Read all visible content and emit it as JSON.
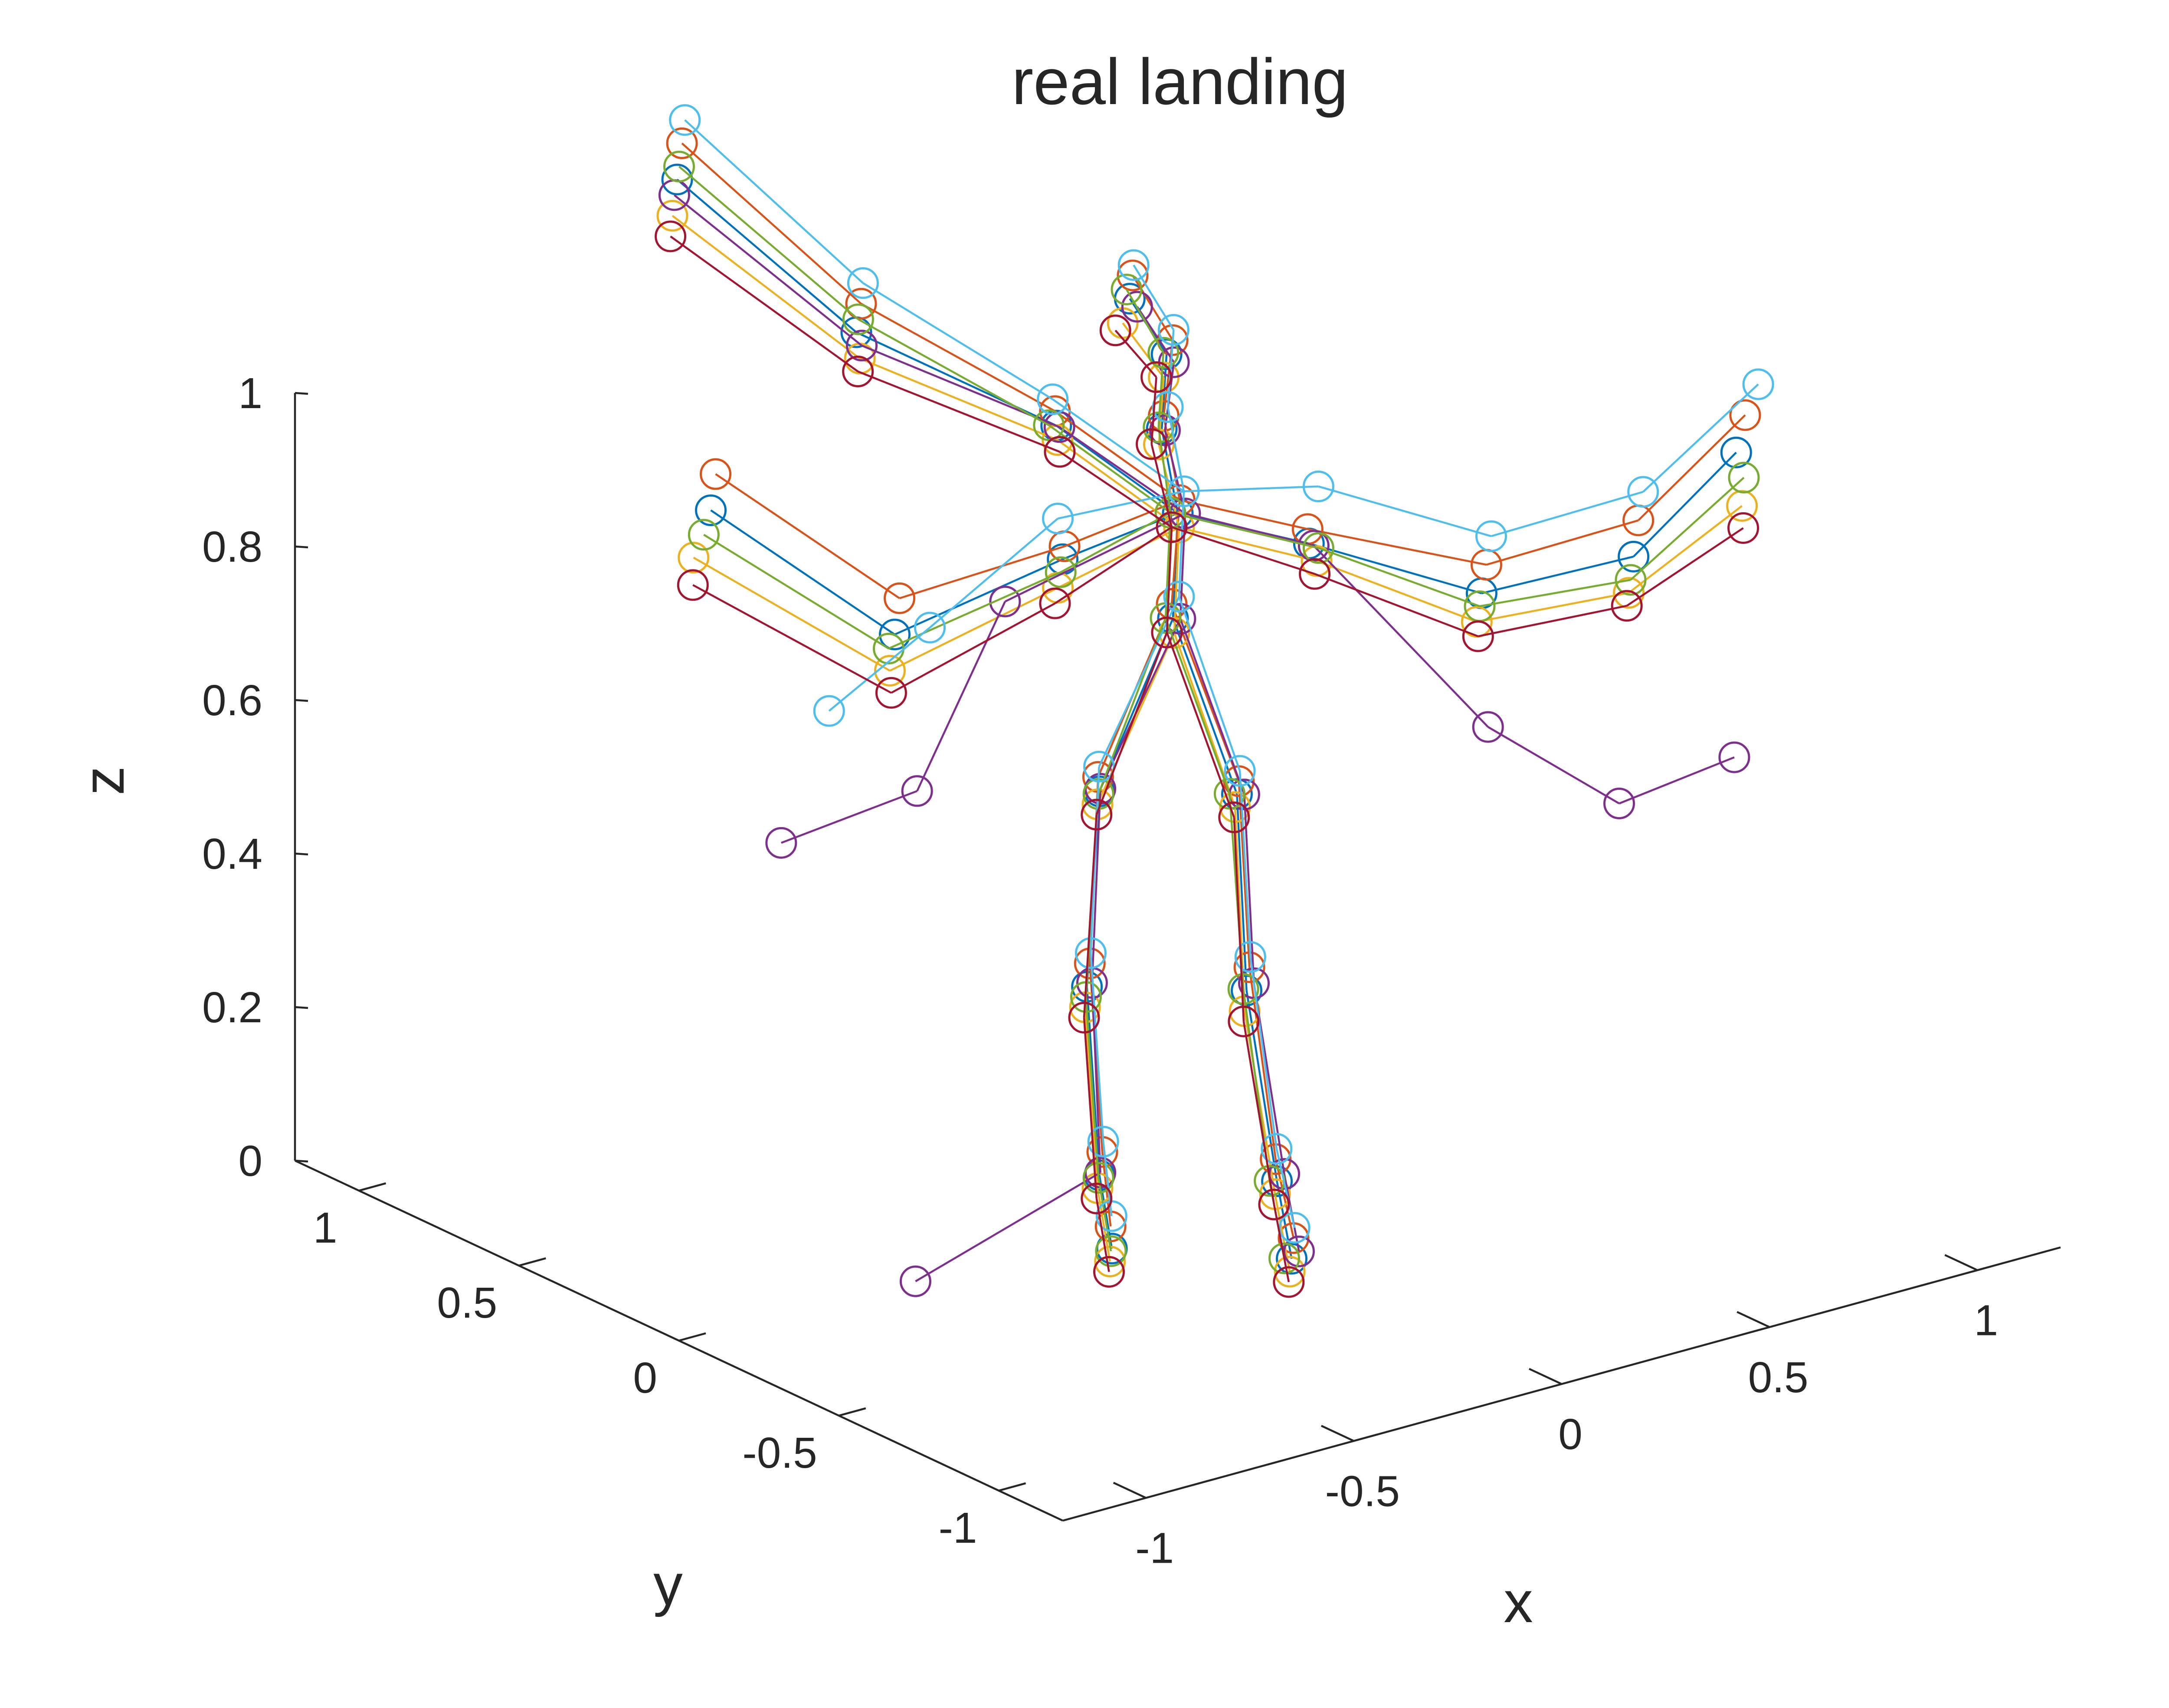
{
  "chart_data": {
    "type": "scatter",
    "subtype": "3d-line-markers",
    "title": "real landing",
    "xlabel": "x",
    "ylabel": "y",
    "zlabel": "z",
    "xlim": [
      -1.2,
      1.2
    ],
    "ylim": [
      -1.2,
      1.2
    ],
    "zlim": [
      0,
      1
    ],
    "x_ticks": [
      "-1",
      "-0.5",
      "0",
      "0.5",
      "1"
    ],
    "y_ticks": [
      "-1",
      "-0.5",
      "0",
      "0.5",
      "1"
    ],
    "z_ticks": [
      "0",
      "0.2",
      "0.4",
      "0.6",
      "0.8",
      "1"
    ],
    "x_tick_values": [
      -1,
      -0.5,
      0,
      0.5,
      1
    ],
    "y_tick_values": [
      -1,
      -0.5,
      0,
      0.5,
      1
    ],
    "z_tick_values": [
      0,
      0.2,
      0.4,
      0.6,
      0.8,
      1
    ],
    "grid": false,
    "legend": "none",
    "marker": "open-circle",
    "colors": [
      "#0072BD",
      "#D95319",
      "#EDB120",
      "#7E2F8E",
      "#77AC30",
      "#4DBEEE",
      "#A2142F"
    ],
    "skeleton_edges": [
      [
        0,
        1
      ],
      [
        1,
        2
      ],
      [
        2,
        3
      ],
      [
        3,
        4
      ],
      [
        1,
        5
      ],
      [
        5,
        6
      ],
      [
        6,
        7
      ],
      [
        1,
        8
      ],
      [
        8,
        9
      ],
      [
        9,
        10
      ],
      [
        10,
        11
      ],
      [
        1,
        12
      ],
      [
        12,
        13
      ],
      [
        13,
        14
      ],
      [
        0,
        15
      ],
      [
        15,
        16
      ],
      [
        16,
        17
      ],
      [
        17,
        18
      ],
      [
        0,
        19
      ],
      [
        19,
        20
      ],
      [
        20,
        21
      ],
      [
        21,
        22
      ]
    ],
    "series": [
      {
        "points": [
          [
            -0.05,
            -0.05,
            0.78
          ],
          [
            0.0,
            0.0,
            0.9
          ],
          [
            0.0,
            0.05,
            1.0
          ],
          [
            0.05,
            0.1,
            1.08
          ],
          [
            0.0,
            0.15,
            1.15
          ],
          [
            -0.2,
            0.1,
            0.85
          ],
          [
            -0.45,
            0.3,
            0.75
          ],
          [
            -0.7,
            0.55,
            0.9
          ],
          [
            0.2,
            -0.15,
            0.86
          ],
          [
            0.5,
            -0.3,
            0.78
          ],
          [
            0.75,
            -0.45,
            0.82
          ],
          [
            0.92,
            -0.55,
            0.95
          ],
          [
            -0.1,
            0.25,
            0.98
          ],
          [
            -0.35,
            0.55,
            1.08
          ],
          [
            -0.55,
            0.85,
            1.25
          ],
          [
            0.05,
            -0.12,
            0.55
          ],
          [
            0.05,
            -0.15,
            0.3
          ],
          [
            0.1,
            -0.18,
            0.05
          ],
          [
            0.12,
            -0.2,
            -0.05
          ],
          [
            -0.15,
            0.05,
            0.55
          ],
          [
            -0.18,
            0.05,
            0.3
          ],
          [
            -0.15,
            0.05,
            0.05
          ],
          [
            -0.12,
            0.05,
            -0.05
          ]
        ]
      },
      {
        "points": [
          [
            -0.03,
            -0.02,
            0.79
          ],
          [
            0.02,
            0.02,
            0.91
          ],
          [
            0.02,
            0.07,
            1.01
          ],
          [
            0.08,
            0.12,
            1.09
          ],
          [
            0.03,
            0.18,
            1.17
          ],
          [
            -0.18,
            0.12,
            0.86
          ],
          [
            -0.4,
            0.35,
            0.78
          ],
          [
            -0.65,
            0.6,
            0.93
          ],
          [
            0.22,
            -0.12,
            0.87
          ],
          [
            0.55,
            -0.25,
            0.8
          ],
          [
            0.8,
            -0.4,
            0.85
          ],
          [
            0.98,
            -0.5,
            0.98
          ],
          [
            -0.08,
            0.28,
            0.99
          ],
          [
            -0.3,
            0.6,
            1.1
          ],
          [
            -0.5,
            0.9,
            1.28
          ],
          [
            0.07,
            -0.1,
            0.56
          ],
          [
            0.08,
            -0.12,
            0.32
          ],
          [
            0.12,
            -0.15,
            0.07
          ],
          [
            0.14,
            -0.18,
            -0.03
          ],
          [
            -0.13,
            0.08,
            0.56
          ],
          [
            -0.15,
            0.08,
            0.32
          ],
          [
            -0.12,
            0.08,
            0.07
          ],
          [
            -0.1,
            0.08,
            -0.03
          ]
        ]
      },
      {
        "points": [
          [
            -0.07,
            -0.08,
            0.77
          ],
          [
            -0.02,
            -0.03,
            0.89
          ],
          [
            -0.03,
            0.02,
            0.99
          ],
          [
            0.02,
            0.07,
            1.06
          ],
          [
            -0.04,
            0.12,
            1.13
          ],
          [
            -0.25,
            0.05,
            0.83
          ],
          [
            -0.5,
            0.25,
            0.72
          ],
          [
            -0.78,
            0.5,
            0.86
          ],
          [
            0.18,
            -0.2,
            0.85
          ],
          [
            0.45,
            -0.35,
            0.76
          ],
          [
            0.7,
            -0.5,
            0.79
          ],
          [
            0.88,
            -0.62,
            0.9
          ],
          [
            -0.12,
            0.22,
            0.97
          ],
          [
            -0.38,
            0.5,
            1.06
          ],
          [
            -0.6,
            0.8,
            1.22
          ],
          [
            0.03,
            -0.14,
            0.54
          ],
          [
            0.03,
            -0.17,
            0.28
          ],
          [
            0.08,
            -0.2,
            0.04
          ],
          [
            0.1,
            -0.22,
            -0.06
          ],
          [
            -0.17,
            0.03,
            0.54
          ],
          [
            -0.2,
            0.03,
            0.28
          ],
          [
            -0.17,
            0.03,
            0.04
          ],
          [
            -0.14,
            0.03,
            -0.06
          ]
        ]
      },
      {
        "points": [
          [
            -0.04,
            -0.06,
            0.78
          ],
          [
            0.01,
            -0.01,
            0.9
          ],
          [
            0.0,
            0.04,
            1.0
          ],
          [
            0.06,
            0.09,
            1.07
          ],
          [
            0.01,
            0.14,
            1.14
          ],
          [
            -0.3,
            0.15,
            0.8
          ],
          [
            -0.55,
            0.1,
            0.6
          ],
          [
            -0.8,
            0.2,
            0.55
          ],
          [
            0.25,
            -0.1,
            0.84
          ],
          [
            0.4,
            -0.45,
            0.65
          ],
          [
            0.6,
            -0.6,
            0.55
          ],
          [
            0.8,
            -0.7,
            0.6
          ],
          [
            -0.1,
            0.24,
            0.98
          ],
          [
            -0.36,
            0.52,
            1.07
          ],
          [
            -0.58,
            0.82,
            1.24
          ],
          [
            0.06,
            -0.13,
            0.55
          ],
          [
            0.06,
            -0.16,
            0.31
          ],
          [
            0.11,
            -0.19,
            0.06
          ],
          [
            0.13,
            -0.21,
            -0.04
          ],
          [
            -0.14,
            0.06,
            0.55
          ],
          [
            -0.16,
            0.06,
            0.3
          ],
          [
            -0.14,
            0.06,
            0.05
          ],
          [
            -0.4,
            0.3,
            -0.1
          ]
        ]
      },
      {
        "points": [
          [
            -0.06,
            -0.04,
            0.78
          ],
          [
            -0.01,
            0.01,
            0.9
          ],
          [
            0.0,
            0.06,
            1.0
          ],
          [
            0.05,
            0.11,
            1.08
          ],
          [
            0.0,
            0.16,
            1.16
          ],
          [
            -0.22,
            0.08,
            0.84
          ],
          [
            -0.48,
            0.28,
            0.74
          ],
          [
            -0.74,
            0.52,
            0.88
          ],
          [
            0.2,
            -0.18,
            0.86
          ],
          [
            0.48,
            -0.32,
            0.77
          ],
          [
            0.72,
            -0.48,
            0.8
          ],
          [
            0.9,
            -0.6,
            0.93
          ],
          [
            -0.11,
            0.26,
            0.98
          ],
          [
            -0.33,
            0.57,
            1.09
          ],
          [
            -0.53,
            0.87,
            1.26
          ],
          [
            0.04,
            -0.11,
            0.55
          ],
          [
            0.05,
            -0.14,
            0.3
          ],
          [
            0.09,
            -0.17,
            0.05
          ],
          [
            0.11,
            -0.19,
            -0.05
          ],
          [
            -0.16,
            0.04,
            0.55
          ],
          [
            -0.19,
            0.04,
            0.29
          ],
          [
            -0.16,
            0.04,
            0.05
          ],
          [
            -0.13,
            0.04,
            -0.05
          ]
        ]
      },
      {
        "points": [
          [
            -0.02,
            -0.03,
            0.8
          ],
          [
            0.03,
            0.02,
            0.92
          ],
          [
            0.03,
            0.07,
            1.02
          ],
          [
            0.09,
            0.13,
            1.1
          ],
          [
            0.04,
            0.19,
            1.18
          ],
          [
            -0.15,
            0.18,
            0.88
          ],
          [
            -0.25,
            0.45,
            0.7
          ],
          [
            -0.3,
            0.7,
            0.55
          ],
          [
            0.3,
            -0.05,
            0.9
          ],
          [
            0.6,
            -0.2,
            0.82
          ],
          [
            0.85,
            -0.35,
            0.87
          ],
          [
            1.05,
            -0.45,
            1.0
          ],
          [
            -0.07,
            0.3,
            1.0
          ],
          [
            -0.28,
            0.62,
            1.12
          ],
          [
            -0.47,
            0.93,
            1.3
          ],
          [
            0.08,
            -0.09,
            0.57
          ],
          [
            0.09,
            -0.11,
            0.33
          ],
          [
            0.13,
            -0.14,
            0.08
          ],
          [
            0.15,
            -0.17,
            -0.02
          ],
          [
            -0.12,
            0.09,
            0.57
          ],
          [
            -0.14,
            0.09,
            0.33
          ],
          [
            -0.11,
            0.09,
            0.08
          ],
          [
            -0.09,
            0.09,
            -0.02
          ]
        ]
      },
      {
        "points": [
          [
            -0.08,
            -0.07,
            0.77
          ],
          [
            -0.03,
            -0.02,
            0.89
          ],
          [
            -0.04,
            0.03,
            0.99
          ],
          [
            0.01,
            0.08,
            1.06
          ],
          [
            -0.05,
            0.13,
            1.12
          ],
          [
            -0.28,
            0.02,
            0.82
          ],
          [
            -0.52,
            0.22,
            0.7
          ],
          [
            -0.82,
            0.45,
            0.84
          ],
          [
            0.16,
            -0.22,
            0.84
          ],
          [
            0.43,
            -0.38,
            0.75
          ],
          [
            0.68,
            -0.52,
            0.78
          ],
          [
            0.86,
            -0.65,
            0.88
          ],
          [
            -0.13,
            0.2,
            0.96
          ],
          [
            -0.4,
            0.48,
            1.05
          ],
          [
            -0.62,
            0.78,
            1.2
          ],
          [
            0.02,
            -0.15,
            0.53
          ],
          [
            0.02,
            -0.18,
            0.27
          ],
          [
            0.07,
            -0.21,
            0.03
          ],
          [
            0.09,
            -0.23,
            -0.07
          ],
          [
            -0.18,
            0.02,
            0.53
          ],
          [
            -0.21,
            0.02,
            0.27
          ],
          [
            -0.18,
            0.02,
            0.03
          ],
          [
            -0.15,
            0.02,
            -0.07
          ]
        ]
      }
    ]
  }
}
